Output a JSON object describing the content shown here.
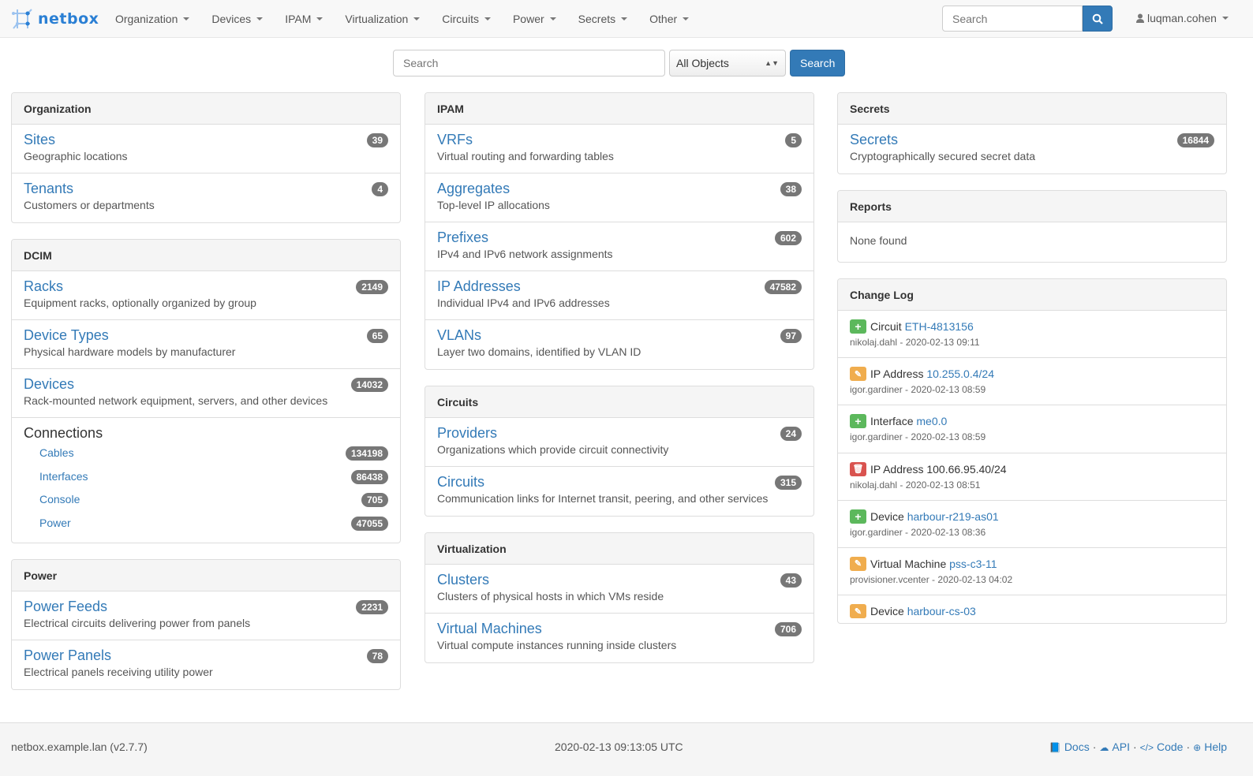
{
  "navbar": {
    "brand": "netbox",
    "menu": [
      "Organization",
      "Devices",
      "IPAM",
      "Virtualization",
      "Circuits",
      "Power",
      "Secrets",
      "Other"
    ],
    "search_placeholder": "Search",
    "user": "luqman.cohen"
  },
  "search": {
    "placeholder": "Search",
    "select": "All Objects",
    "button": "Search"
  },
  "colors": {
    "link": "#337ab7",
    "primary": "#337ab7",
    "create": "#5cb85c",
    "update": "#f0ad4e",
    "delete": "#d9534f"
  },
  "organization": {
    "title": "Organization",
    "items": [
      {
        "title": "Sites",
        "desc": "Geographic locations",
        "count": "39"
      },
      {
        "title": "Tenants",
        "desc": "Customers or departments",
        "count": "4"
      }
    ]
  },
  "dcim": {
    "title": "DCIM",
    "items": [
      {
        "title": "Racks",
        "desc": "Equipment racks, optionally organized by group",
        "count": "2149"
      },
      {
        "title": "Device Types",
        "desc": "Physical hardware models by manufacturer",
        "count": "65"
      },
      {
        "title": "Devices",
        "desc": "Rack-mounted network equipment, servers, and other devices",
        "count": "14032"
      }
    ],
    "connections": {
      "title": "Connections",
      "items": [
        {
          "title": "Cables",
          "count": "134198"
        },
        {
          "title": "Interfaces",
          "count": "86438"
        },
        {
          "title": "Console",
          "count": "705"
        },
        {
          "title": "Power",
          "count": "47055"
        }
      ]
    }
  },
  "power": {
    "title": "Power",
    "items": [
      {
        "title": "Power Feeds",
        "desc": "Electrical circuits delivering power from panels",
        "count": "2231"
      },
      {
        "title": "Power Panels",
        "desc": "Electrical panels receiving utility power",
        "count": "78"
      }
    ]
  },
  "ipam": {
    "title": "IPAM",
    "items": [
      {
        "title": "VRFs",
        "desc": "Virtual routing and forwarding tables",
        "count": "5"
      },
      {
        "title": "Aggregates",
        "desc": "Top-level IP allocations",
        "count": "38"
      },
      {
        "title": "Prefixes",
        "desc": "IPv4 and IPv6 network assignments",
        "count": "602"
      },
      {
        "title": "IP Addresses",
        "desc": "Individual IPv4 and IPv6 addresses",
        "count": "47582"
      },
      {
        "title": "VLANs",
        "desc": "Layer two domains, identified by VLAN ID",
        "count": "97"
      }
    ]
  },
  "circuits": {
    "title": "Circuits",
    "items": [
      {
        "title": "Providers",
        "desc": "Organizations which provide circuit connectivity",
        "count": "24"
      },
      {
        "title": "Circuits",
        "desc": "Communication links for Internet transit, peering, and other services",
        "count": "315"
      }
    ]
  },
  "virtualization": {
    "title": "Virtualization",
    "items": [
      {
        "title": "Clusters",
        "desc": "Clusters of physical hosts in which VMs reside",
        "count": "43"
      },
      {
        "title": "Virtual Machines",
        "desc": "Virtual compute instances running inside clusters",
        "count": "706"
      }
    ]
  },
  "secrets": {
    "title": "Secrets",
    "items": [
      {
        "title": "Secrets",
        "desc": "Cryptographically secured secret data",
        "count": "16844"
      }
    ]
  },
  "reports": {
    "title": "Reports",
    "empty": "None found"
  },
  "changelog": {
    "title": "Change Log",
    "entries": [
      {
        "action": "create",
        "type": "Circuit",
        "object": "ETH-4813156",
        "user": "nikolaj.dahl",
        "time": "2020-02-13 09:11",
        "link": true
      },
      {
        "action": "update",
        "type": "IP Address",
        "object": "10.255.0.4/24",
        "user": "igor.gardiner",
        "time": "2020-02-13 08:59",
        "link": true
      },
      {
        "action": "create",
        "type": "Interface",
        "object": "me0.0",
        "user": "igor.gardiner",
        "time": "2020-02-13 08:59",
        "link": true
      },
      {
        "action": "delete",
        "type": "IP Address",
        "object": "100.66.95.40/24",
        "user": "nikolaj.dahl",
        "time": "2020-02-13 08:51",
        "link": false
      },
      {
        "action": "create",
        "type": "Device",
        "object": "harbour-r219-as01",
        "user": "igor.gardiner",
        "time": "2020-02-13 08:36",
        "link": true
      },
      {
        "action": "update",
        "type": "Virtual Machine",
        "object": "pss-c3-11",
        "user": "provisioner.vcenter",
        "time": "2020-02-13 04:02",
        "link": true
      },
      {
        "action": "update",
        "type": "Device",
        "object": "harbour-cs-03",
        "user": "",
        "time": "",
        "link": true
      }
    ]
  },
  "footer": {
    "host": "netbox.example.lan (v2.7.7)",
    "time": "2020-02-13 09:13:05 UTC",
    "links": [
      {
        "label": "Docs",
        "icon": "book-icon"
      },
      {
        "label": "API",
        "icon": "cloud-icon"
      },
      {
        "label": "Code",
        "icon": "code-icon"
      },
      {
        "label": "Help",
        "icon": "lifebuoy-icon"
      }
    ]
  }
}
